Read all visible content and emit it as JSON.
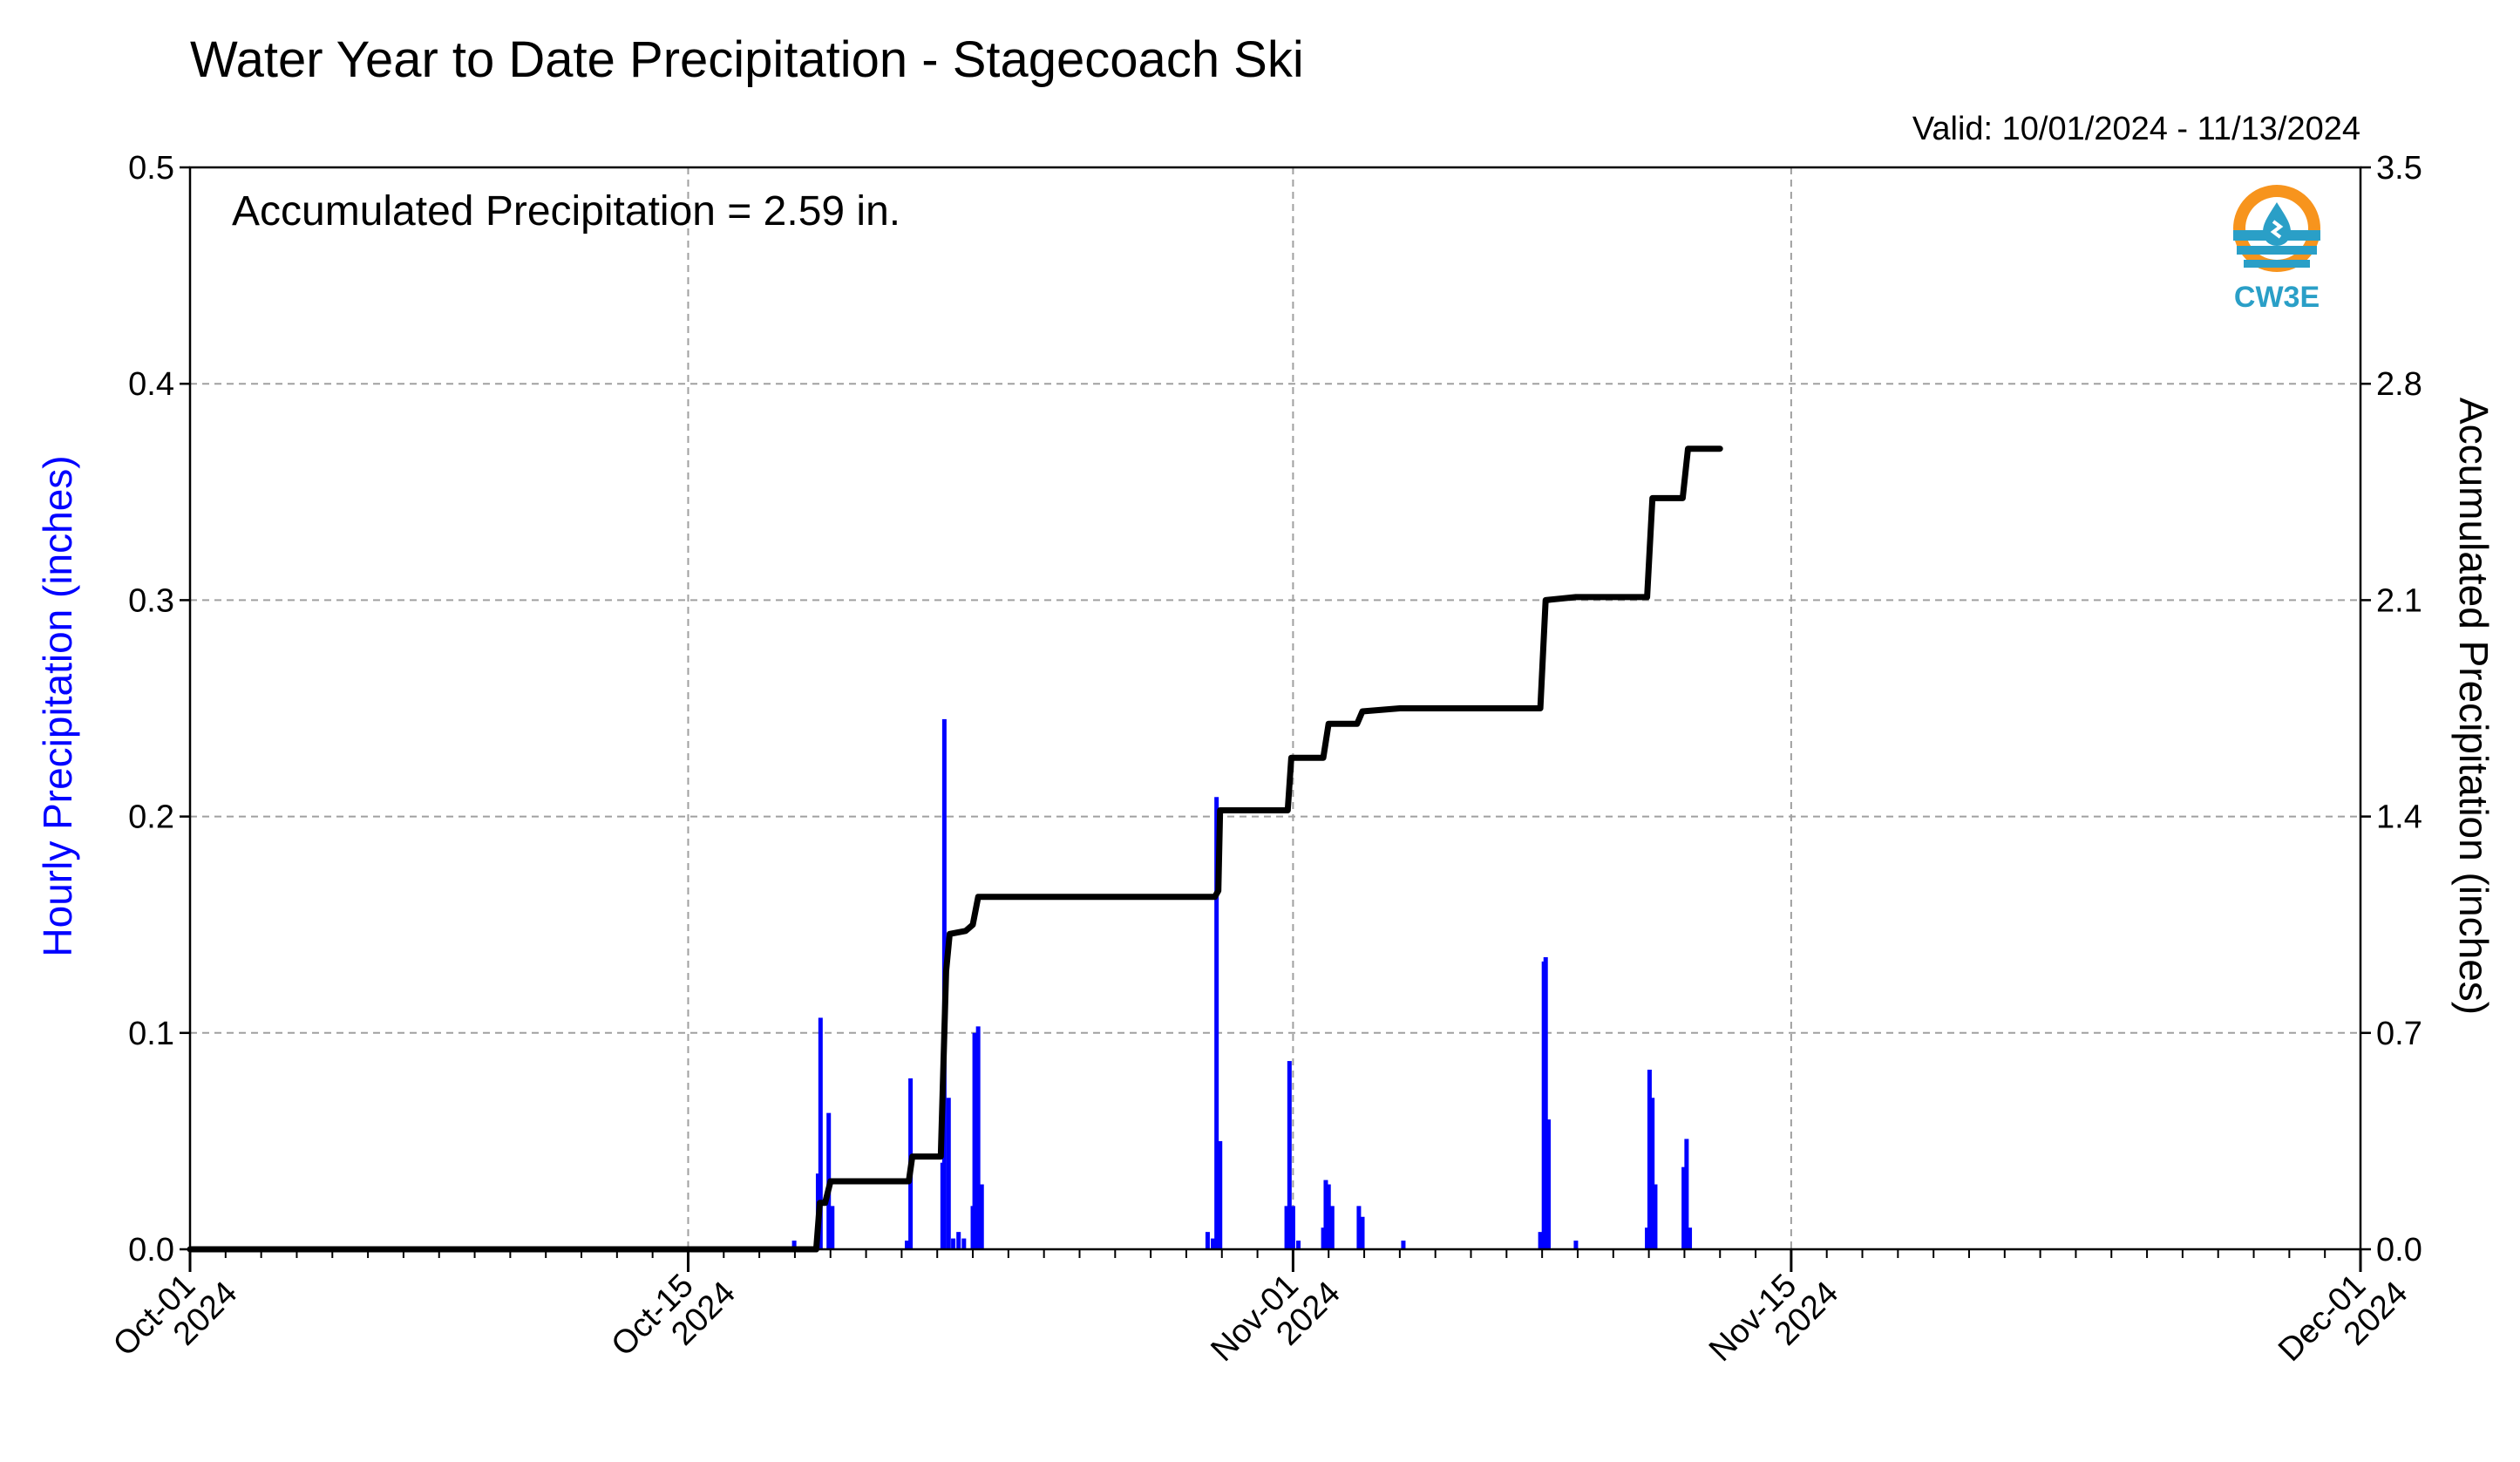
{
  "chart_data": {
    "type": "bar+line",
    "title": "Water Year to Date Precipitation - Stagecoach Ski",
    "valid_label": "Valid: 10/01/2024 - 11/13/2024",
    "annotation": "Accumulated Precipitation = 2.59 in.",
    "left_axis": {
      "label": "Hourly Precipitation (inches)",
      "color": "#0000ff",
      "range": [
        0,
        0.5
      ],
      "ticks": [
        "0.0",
        "0.1",
        "0.2",
        "0.3",
        "0.4",
        "0.5"
      ]
    },
    "right_axis": {
      "label": "Accumulated Precipitation (inches)",
      "range": [
        0,
        3.5
      ],
      "ticks": [
        "0.0",
        "0.7",
        "1.4",
        "2.1",
        "2.8",
        "3.5"
      ]
    },
    "x_axis": {
      "range_days": [
        0,
        61
      ],
      "major_ticks": [
        {
          "day": 0,
          "line1": "Oct-01",
          "line2": "2024"
        },
        {
          "day": 14,
          "line1": "Oct-15",
          "line2": "2024"
        },
        {
          "day": 31,
          "line1": "Nov-01",
          "line2": "2024"
        },
        {
          "day": 45,
          "line1": "Nov-15",
          "line2": "2024"
        },
        {
          "day": 61,
          "line1": "Dec-01",
          "line2": "2024"
        }
      ],
      "grid": true
    },
    "hourly_series": {
      "name": "Hourly Precipitation",
      "color": "#0000ff",
      "points": [
        [
          16.98,
          0.004
        ],
        [
          17.65,
          0.035
        ],
        [
          17.72,
          0.107
        ],
        [
          17.95,
          0.063
        ],
        [
          18.05,
          0.02
        ],
        [
          20.15,
          0.004
        ],
        [
          20.25,
          0.079
        ],
        [
          21.15,
          0.04
        ],
        [
          21.2,
          0.245
        ],
        [
          21.32,
          0.07
        ],
        [
          21.45,
          0.005
        ],
        [
          21.6,
          0.008
        ],
        [
          21.75,
          0.005
        ],
        [
          22.0,
          0.02
        ],
        [
          22.05,
          0.1
        ],
        [
          22.15,
          0.103
        ],
        [
          22.25,
          0.03
        ],
        [
          28.6,
          0.008
        ],
        [
          28.75,
          0.005
        ],
        [
          28.85,
          0.209
        ],
        [
          28.95,
          0.05
        ],
        [
          30.82,
          0.02
        ],
        [
          30.9,
          0.087
        ],
        [
          31.0,
          0.02
        ],
        [
          31.15,
          0.004
        ],
        [
          31.85,
          0.01
        ],
        [
          31.92,
          0.032
        ],
        [
          32.0,
          0.03
        ],
        [
          32.1,
          0.02
        ],
        [
          32.85,
          0.02
        ],
        [
          32.95,
          0.015
        ],
        [
          34.1,
          0.004
        ],
        [
          37.95,
          0.008
        ],
        [
          38.05,
          0.133
        ],
        [
          38.1,
          0.135
        ],
        [
          38.18,
          0.06
        ],
        [
          38.95,
          0.004
        ],
        [
          40.95,
          0.01
        ],
        [
          41.02,
          0.083
        ],
        [
          41.1,
          0.07
        ],
        [
          41.18,
          0.03
        ],
        [
          41.98,
          0.038
        ],
        [
          42.06,
          0.051
        ],
        [
          42.15,
          0.01
        ]
      ]
    },
    "accumulated_series": {
      "name": "Accumulated Precipitation",
      "color": "#000000",
      "points": [
        [
          0,
          0
        ],
        [
          17.6,
          0
        ],
        [
          17.7,
          0.15
        ],
        [
          17.85,
          0.15
        ],
        [
          18.0,
          0.22
        ],
        [
          20.2,
          0.22
        ],
        [
          20.3,
          0.3
        ],
        [
          21.1,
          0.3
        ],
        [
          21.25,
          0.9
        ],
        [
          21.35,
          1.02
        ],
        [
          21.8,
          1.03
        ],
        [
          22.0,
          1.05
        ],
        [
          22.15,
          1.14
        ],
        [
          28.8,
          1.14
        ],
        [
          28.9,
          1.16
        ],
        [
          28.95,
          1.42
        ],
        [
          30.85,
          1.42
        ],
        [
          30.95,
          1.59
        ],
        [
          31.85,
          1.59
        ],
        [
          32.0,
          1.7
        ],
        [
          32.8,
          1.7
        ],
        [
          32.95,
          1.74
        ],
        [
          34.0,
          1.75
        ],
        [
          37.95,
          1.75
        ],
        [
          38.1,
          2.1
        ],
        [
          38.95,
          2.11
        ],
        [
          40.95,
          2.11
        ],
        [
          41.1,
          2.43
        ],
        [
          41.95,
          2.43
        ],
        [
          42.1,
          2.59
        ],
        [
          43.0,
          2.59
        ]
      ]
    },
    "logo": {
      "text": "CW3E"
    }
  }
}
